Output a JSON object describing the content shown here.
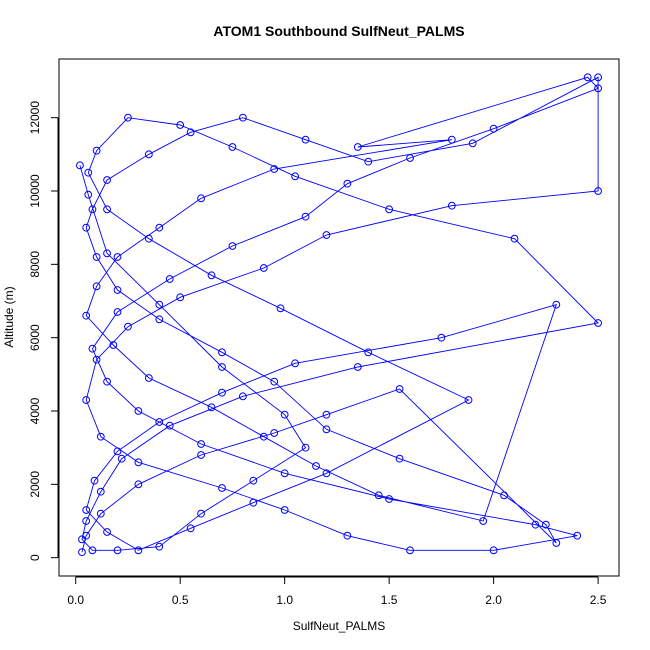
{
  "chart_data": {
    "type": "line",
    "title": "ATOM1 Southbound SulfNeut_PALMS",
    "xlabel": "SulfNeut_PALMS",
    "ylabel": "Altitude (m)",
    "xlim": [
      -0.08,
      2.6
    ],
    "ylim": [
      -500,
      13600
    ],
    "xticks": [
      0.0,
      0.5,
      1.0,
      1.5,
      2.0,
      2.5
    ],
    "xtick_labels": [
      "0.0",
      "0.5",
      "1.0",
      "1.5",
      "2.0",
      "2.5"
    ],
    "yticks": [
      0,
      2000,
      4000,
      6000,
      8000,
      10000,
      12000
    ],
    "ytick_labels": [
      "0",
      "2000",
      "4000",
      "6000",
      "8000",
      "10000",
      "12000"
    ],
    "grid": false,
    "marker": "open-circle",
    "series": [
      {
        "color": "#0000ff",
        "x": [
          0.03,
          0.05,
          0.12,
          0.3,
          0.6,
          0.95,
          1.2,
          1.55,
          2.3,
          2.25,
          2.05,
          1.55,
          1.2,
          0.95,
          0.7,
          0.4,
          0.2,
          0.1,
          0.05,
          0.08,
          0.15,
          0.35,
          0.55,
          0.8,
          1.1,
          1.4,
          1.9,
          2.5,
          2.5,
          1.8,
          1.2,
          0.9,
          0.5,
          0.25,
          0.1,
          0.05,
          0.12,
          0.3,
          0.7,
          1.0,
          1.3,
          1.6,
          2.0,
          2.4,
          2.2,
          1.5,
          1.0,
          0.6,
          0.3,
          0.15,
          0.08,
          0.2,
          0.45,
          0.75,
          1.1,
          1.3,
          1.6,
          2.0,
          2.5,
          2.45,
          1.35,
          1.8,
          0.95,
          0.6,
          0.4,
          0.2,
          0.1,
          0.05,
          0.18,
          0.35,
          0.65,
          0.9,
          1.15,
          1.45,
          1.95,
          2.3,
          1.75,
          1.05,
          0.7,
          0.4,
          0.2,
          0.09,
          0.05,
          0.15,
          0.3,
          0.55,
          0.85,
          1.2,
          1.88,
          1.4,
          0.98,
          0.65,
          0.35,
          0.15,
          0.06,
          0.1,
          0.25,
          0.5,
          0.75,
          1.05,
          1.5,
          2.1,
          2.5,
          1.35,
          0.8,
          0.45,
          0.22,
          0.12,
          0.05,
          0.03,
          0.08,
          0.2,
          0.4,
          0.6,
          0.85,
          1.1,
          1.0,
          0.7,
          0.4,
          0.15,
          0.06,
          0.02
        ],
        "y": [
          150,
          600,
          1200,
          2000,
          2800,
          3400,
          3900,
          4600,
          400,
          900,
          1700,
          2700,
          3500,
          4800,
          5600,
          6500,
          7300,
          8200,
          9000,
          9500,
          10300,
          11000,
          11600,
          12000,
          11400,
          10800,
          11300,
          13100,
          10000,
          9600,
          8800,
          7900,
          7100,
          6300,
          5400,
          4300,
          3300,
          2600,
          1900,
          1300,
          600,
          200,
          200,
          600,
          900,
          1600,
          2300,
          3100,
          4000,
          4800,
          5700,
          6700,
          7600,
          8500,
          9300,
          10200,
          10900,
          11700,
          12800,
          13100,
          11200,
          11400,
          10600,
          9800,
          9000,
          8200,
          7400,
          6600,
          5800,
          4900,
          4100,
          3300,
          2500,
          1700,
          1000,
          6900,
          6000,
          5300,
          4500,
          3700,
          2900,
          2100,
          1300,
          700,
          200,
          800,
          1500,
          2300,
          4300,
          5600,
          6800,
          7700,
          8700,
          9500,
          10500,
          11100,
          12000,
          11800,
          11200,
          10400,
          9500,
          8700,
          6400,
          5200,
          4400,
          3600,
          2700,
          1800,
          1000,
          500,
          200,
          200,
          300,
          1200,
          2100,
          3000,
          3900,
          5200,
          6900,
          8300,
          9900,
          10700
        ]
      }
    ]
  }
}
